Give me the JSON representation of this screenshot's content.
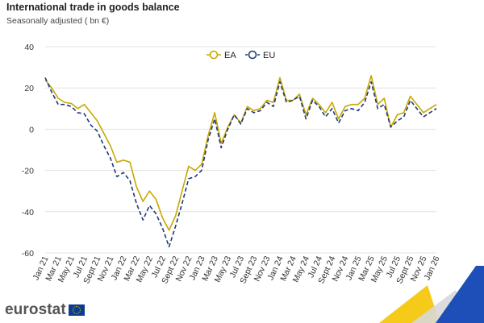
{
  "header": {
    "title": "International trade in goods balance",
    "subtitle": "Seasonally adjusted ( bn €)"
  },
  "brand": {
    "logo_text": "eurostat",
    "flag_icon": "eu-flag-icon"
  },
  "colors": {
    "ea": "#c8a800",
    "eu": "#1f3a78",
    "grid": "#e3e3e3"
  },
  "chart_data": {
    "type": "line",
    "title": "International trade in goods balance",
    "subtitle": "Seasonally adjusted ( bn €)",
    "xlabel": "",
    "ylabel": "",
    "ylim": [
      -60,
      40
    ],
    "yticks": [
      40,
      20,
      0,
      -20,
      -40,
      -60
    ],
    "grid": true,
    "legend": "top-center",
    "x": [
      "Jan 21",
      "Feb 21",
      "Mar 21",
      "Apr 21",
      "May 21",
      "Jun 21",
      "Jul 21",
      "Aug 21",
      "Sept 21",
      "Oct 21",
      "Nov 21",
      "Dec 21",
      "Jan 22",
      "Feb 22",
      "Mar 22",
      "Apr 22",
      "May 22",
      "Jun 22",
      "Jul 22",
      "Aug 22",
      "Sept 22",
      "Oct 22",
      "Nov 22",
      "Dec 22",
      "Jan 23",
      "Feb 23",
      "Mar 23",
      "Apr 23",
      "May 23",
      "Jun 23",
      "Jul 23",
      "Aug 23",
      "Sept 23",
      "Oct 23",
      "Nov 23",
      "Dec 23",
      "Jan 24",
      "Feb 24",
      "Mar 24",
      "Apr 24",
      "May 24",
      "Jun 24",
      "Jul 24",
      "Aug 24",
      "Sept 24",
      "Oct 24",
      "Nov 24",
      "Dec 24",
      "Jan 25",
      "Feb 25",
      "Mar 25",
      "Apr 25",
      "May 25",
      "Jun 25",
      "Jul 25",
      "Aug 25",
      "Sept 25",
      "Oct 25",
      "Nov 25",
      "Dec 25",
      "Jan 26"
    ],
    "x_tick_labels": [
      "Jan 21",
      "Mar 21",
      "May 21",
      "Jul 21",
      "Sept 21",
      "Nov 21",
      "Jan 22",
      "Mar 22",
      "May 22",
      "Jul 22",
      "Sept 22",
      "Nov 22",
      "Jan 23",
      "Mar 23",
      "May 23",
      "Jul 23",
      "Sept 23",
      "Nov 23",
      "Jan 24",
      "Mar 24",
      "May 24",
      "Jul 24",
      "Sept 24",
      "Nov 24",
      "Jan 25",
      "Mar 25",
      "May 25",
      "Jul 25",
      "Sept 25",
      "Nov 25",
      "Jan 26"
    ],
    "series": [
      {
        "name": "EA",
        "color": "#c8a800",
        "style": "solid",
        "values": [
          24,
          20,
          15,
          13,
          12.5,
          10,
          12,
          8,
          4,
          -2,
          -8,
          -16,
          -15,
          -16,
          -28,
          -35,
          -30,
          -34,
          -43,
          -49,
          -42,
          -30,
          -18,
          -20,
          -17,
          -3,
          8,
          -7,
          1,
          7,
          3,
          11,
          9,
          10,
          14,
          13,
          25,
          14,
          14,
          17,
          7,
          15,
          12,
          8,
          13,
          5,
          11,
          12,
          12,
          15,
          26,
          12,
          15,
          1,
          7,
          8,
          16,
          12,
          8,
          10,
          12
        ]
      },
      {
        "name": "EU",
        "color": "#1f3a78",
        "style": "dashed",
        "values": [
          25,
          18,
          12,
          12,
          11,
          8,
          7.5,
          2,
          -1,
          -8,
          -14,
          -23,
          -21,
          -25,
          -36,
          -44,
          -37,
          -41,
          -48,
          -57,
          -47,
          -36,
          -24,
          -23,
          -20,
          -5,
          5,
          -9,
          0,
          7,
          2.5,
          10,
          8,
          9,
          13,
          11,
          23,
          13,
          14,
          16,
          5,
          14,
          11,
          6,
          10,
          3,
          9,
          10,
          9,
          13,
          23,
          10,
          12,
          1,
          4,
          6,
          14,
          10,
          6,
          8,
          10
        ]
      }
    ]
  }
}
